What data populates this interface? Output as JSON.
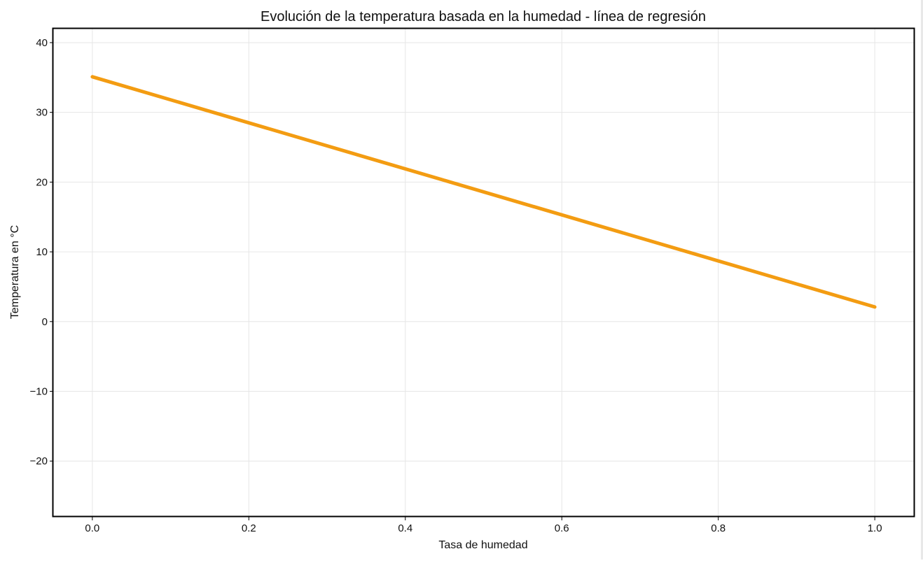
{
  "chart_data": {
    "type": "line",
    "title": "Evolución de la temperatura basada en la humedad - línea de regresión",
    "xlabel": "Tasa de humedad",
    "ylabel": "Temperatura en °C",
    "xlim": [
      -0.05,
      1.05
    ],
    "ylim": [
      -28,
      42
    ],
    "xticks": [
      0.0,
      0.2,
      0.4,
      0.6,
      0.8,
      1.0
    ],
    "xtick_labels": [
      "0.0",
      "0.2",
      "0.4",
      "0.6",
      "0.8",
      "1.0"
    ],
    "yticks": [
      -20,
      -10,
      0,
      10,
      20,
      30,
      40
    ],
    "ytick_labels": [
      "−20",
      "−10",
      "0",
      "10",
      "20",
      "30",
      "40"
    ],
    "grid": true,
    "series": [
      {
        "color": "#f39c12",
        "x": [
          0.0,
          1.0
        ],
        "y": [
          35.1,
          2.1
        ]
      }
    ]
  }
}
